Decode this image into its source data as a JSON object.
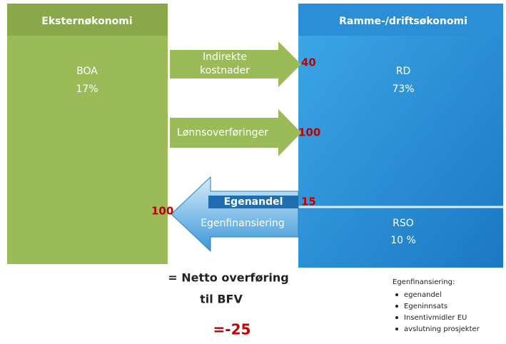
{
  "left": {
    "header": "Eksternøkonomi",
    "label": "BOA",
    "share": "17%"
  },
  "right": {
    "header": "Ramme-/driftsøkonomi",
    "label": "RD",
    "share": "73%",
    "lower_label": "RSO",
    "lower_share": "10 %"
  },
  "arrows": [
    {
      "label": [
        "Indirekte",
        "kostnader"
      ],
      "amount": 40
    },
    {
      "label": [
        "Lønnsoverføringer"
      ],
      "amount": 100
    },
    {
      "label": [
        "Egenandel",
        "Egenfinansiering"
      ],
      "amount_right": 15,
      "amount_left": 100
    }
  ],
  "summary": {
    "line1": "= Netto overføring",
    "line2": "til BFV",
    "result": "=-25"
  },
  "note": {
    "title": "Egenfinansiering:",
    "items": [
      "egenandel",
      "Egeninnsats",
      "Insentivmidler EU",
      "avslutning prosjekter"
    ]
  }
}
